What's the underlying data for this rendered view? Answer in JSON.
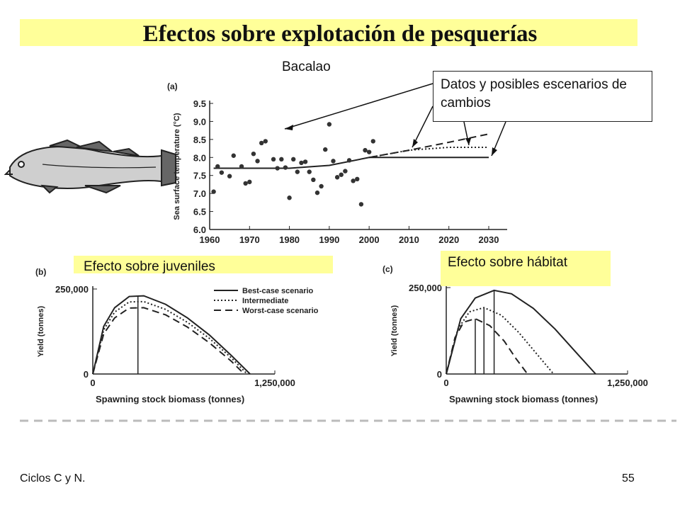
{
  "slide": {
    "title": "Efectos sobre explotación de pesquerías",
    "subtitle": "Bacalao",
    "callout": "Datos y posibles escenarios de cambios",
    "label_juveniles": "Efecto sobre juveniles",
    "label_habitat": "Efecto sobre hábitat",
    "footer_left": "Ciclos C y N.",
    "page_number": "55"
  },
  "chart_data": [
    {
      "type": "scatter",
      "panel": "(a)",
      "ylabel": "Sea surface temperature (°C)",
      "xlabel": "",
      "xlim": [
        1960,
        2030
      ],
      "ylim": [
        6.0,
        9.5
      ],
      "xticks": [
        "1960",
        "1970",
        "1980",
        "1990",
        "2000",
        "2010",
        "2020",
        "2030"
      ],
      "yticks": [
        "6.0",
        "6.5",
        "7.0",
        "7.5",
        "8.0",
        "8.5",
        "9.0",
        "9.5"
      ],
      "points": [
        {
          "x": 1961,
          "y": 7.05
        },
        {
          "x": 1962,
          "y": 7.75
        },
        {
          "x": 1963,
          "y": 7.58
        },
        {
          "x": 1965,
          "y": 7.48
        },
        {
          "x": 1966,
          "y": 8.05
        },
        {
          "x": 1968,
          "y": 7.75
        },
        {
          "x": 1969,
          "y": 7.28
        },
        {
          "x": 1970,
          "y": 7.32
        },
        {
          "x": 1971,
          "y": 8.1
        },
        {
          "x": 1972,
          "y": 7.9
        },
        {
          "x": 1973,
          "y": 8.4
        },
        {
          "x": 1974,
          "y": 8.45
        },
        {
          "x": 1976,
          "y": 7.95
        },
        {
          "x": 1977,
          "y": 7.7
        },
        {
          "x": 1978,
          "y": 7.95
        },
        {
          "x": 1979,
          "y": 7.72
        },
        {
          "x": 1980,
          "y": 6.88
        },
        {
          "x": 1981,
          "y": 7.95
        },
        {
          "x": 1982,
          "y": 7.6
        },
        {
          "x": 1983,
          "y": 7.85
        },
        {
          "x": 1984,
          "y": 7.88
        },
        {
          "x": 1985,
          "y": 7.6
        },
        {
          "x": 1986,
          "y": 7.38
        },
        {
          "x": 1987,
          "y": 7.02
        },
        {
          "x": 1988,
          "y": 7.2
        },
        {
          "x": 1989,
          "y": 8.22
        },
        {
          "x": 1990,
          "y": 8.92
        },
        {
          "x": 1991,
          "y": 7.9
        },
        {
          "x": 1992,
          "y": 7.45
        },
        {
          "x": 1993,
          "y": 7.52
        },
        {
          "x": 1994,
          "y": 7.62
        },
        {
          "x": 1995,
          "y": 7.92
        },
        {
          "x": 1996,
          "y": 7.35
        },
        {
          "x": 1997,
          "y": 7.4
        },
        {
          "x": 1998,
          "y": 6.7
        },
        {
          "x": 1999,
          "y": 8.2
        },
        {
          "x": 2000,
          "y": 8.15
        },
        {
          "x": 2001,
          "y": 8.45
        }
      ],
      "series": [
        {
          "style": "solid",
          "x": [
            1961,
            1980,
            1990,
            2000,
            2030
          ],
          "y": [
            7.7,
            7.7,
            7.78,
            8.0,
            8.0
          ]
        },
        {
          "style": "dotted",
          "x": [
            2000,
            2010,
            2020,
            2030
          ],
          "y": [
            8.0,
            8.2,
            8.28,
            8.28
          ]
        },
        {
          "style": "dashed",
          "x": [
            2000,
            2010,
            2020,
            2030
          ],
          "y": [
            8.0,
            8.2,
            8.42,
            8.65
          ]
        }
      ]
    },
    {
      "type": "line",
      "panel": "(b)",
      "xlabel": "Spawning stock biomass (tonnes)",
      "ylabel": "Yield (tonnes)",
      "xticks": [
        "0",
        "1,250,000"
      ],
      "yticks": [
        "0",
        "250,000"
      ],
      "xlim": [
        0,
        1250000
      ],
      "ylim": [
        0,
        250000
      ],
      "legend": "top-right",
      "series": [
        {
          "name": "Best-case scenario",
          "style": "solid",
          "x": [
            0,
            75000,
            150000,
            250000,
            350000,
            500000,
            650000,
            800000,
            950000,
            1080000
          ],
          "y": [
            0,
            140000,
            195000,
            228000,
            230000,
            205000,
            165000,
            115000,
            55000,
            0
          ]
        },
        {
          "name": "Intermediate",
          "style": "dotted",
          "x": [
            0,
            75000,
            150000,
            250000,
            350000,
            500000,
            650000,
            800000,
            950000,
            1060000
          ],
          "y": [
            0,
            130000,
            182000,
            212000,
            213000,
            190000,
            152000,
            105000,
            48000,
            0
          ]
        },
        {
          "name": "Worst-case scenario",
          "style": "dashed",
          "x": [
            0,
            75000,
            150000,
            250000,
            350000,
            500000,
            650000,
            800000,
            950000,
            1040000
          ],
          "y": [
            0,
            118000,
            165000,
            194000,
            195000,
            174000,
            138000,
            92000,
            38000,
            0
          ]
        }
      ],
      "msy_x": [
        310000
      ]
    },
    {
      "type": "line",
      "panel": "(c)",
      "xlabel": "Spawning stock biomass (tonnes)",
      "ylabel": "Yield (tonnes)",
      "xticks": [
        "0",
        "1,250,000"
      ],
      "yticks": [
        "0",
        "250,000"
      ],
      "xlim": [
        0,
        1250000
      ],
      "ylim": [
        0,
        250000
      ],
      "series": [
        {
          "style": "solid",
          "x": [
            0,
            100000,
            200000,
            330000,
            450000,
            600000,
            750000,
            900000,
            1030000
          ],
          "y": [
            0,
            160000,
            220000,
            242000,
            232000,
            190000,
            130000,
            60000,
            0
          ]
        },
        {
          "style": "dotted",
          "x": [
            0,
            80000,
            160000,
            260000,
            380000,
            500000,
            620000,
            740000
          ],
          "y": [
            0,
            130000,
            180000,
            192000,
            170000,
            120000,
            60000,
            0
          ]
        },
        {
          "style": "dashed",
          "x": [
            0,
            60000,
            120000,
            200000,
            300000,
            400000,
            480000,
            560000
          ],
          "y": [
            0,
            105000,
            150000,
            160000,
            140000,
            95000,
            45000,
            0
          ]
        }
      ],
      "msy_x": [
        200000,
        260000,
        330000
      ]
    }
  ],
  "colors": {
    "highlight": "#ffff99",
    "ink": "#222222"
  },
  "icons": {
    "fish": "cod-fish-illustration"
  }
}
